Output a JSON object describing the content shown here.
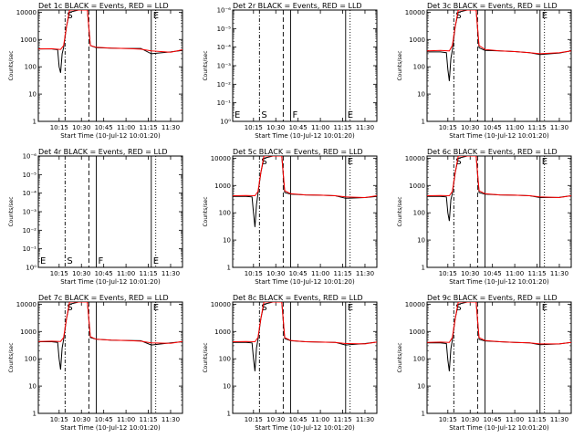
{
  "colors": {
    "events": "#000000",
    "lld": "#ff0000",
    "background": "#ffffff"
  },
  "shared_xlabel": "Start Time (10-Jul-12 10:01:20)",
  "shared_ylabel": "Counts/sec",
  "x_ticklabels": [
    "10:15",
    "10:30",
    "10:45",
    "11:00",
    "11:15",
    "11:30"
  ],
  "chart_data": [
    {
      "type": "line",
      "title": "Det 1c BLACK = Events, RED = LLD",
      "xlabel": "Start Time (10-Jul-12 10:01:20)",
      "ylabel": "Counts/sec",
      "x_ticks": [
        "10:15",
        "10:30",
        "10:45",
        "11:00",
        "11:15",
        "11:30"
      ],
      "yscale": "log",
      "y_ticks": [
        "1",
        "10",
        "100",
        "1000",
        "10000"
      ],
      "ylim": [
        1,
        12000
      ],
      "vlines": {
        "dashdot": "10:19",
        "dashed": "10:35",
        "solid": "10:40",
        "solid2": "11:17",
        "dotted": "11:20"
      },
      "labels": [
        {
          "text": "S",
          "at": "10:19"
        },
        {
          "text": "E",
          "at": "11:17"
        }
      ],
      "series": [
        {
          "name": "Events",
          "x": [
            "10:01",
            "10:10",
            "10:14",
            "10:15",
            "10:16",
            "10:17",
            "10:18",
            "10:20",
            "10:22",
            "10:28",
            "10:34",
            "10:36",
            "10:40",
            "10:50",
            "11:00",
            "11:10",
            "11:17",
            "11:30",
            "11:38"
          ],
          "values": [
            450,
            450,
            420,
            100,
            60,
            300,
            500,
            3000,
            10000,
            12000,
            12000,
            600,
            500,
            480,
            470,
            470,
            300,
            350,
            400
          ]
        },
        {
          "name": "LLD",
          "x": [
            "10:01",
            "10:10",
            "10:16",
            "10:18",
            "10:20",
            "10:22",
            "10:28",
            "10:34",
            "10:36",
            "10:40",
            "10:50",
            "11:00",
            "11:10",
            "11:17",
            "11:30",
            "11:38"
          ],
          "values": [
            450,
            460,
            430,
            600,
            3000,
            12000,
            12000,
            12000,
            600,
            520,
            480,
            470,
            440,
            380,
            340,
            420
          ]
        }
      ]
    },
    {
      "type": "line",
      "title": "Det 2r BLACK = Events, RED = LLD",
      "xlabel": "Start Time (10-Jul-12 10:01:20)",
      "ylabel": "Counts/sec",
      "x_ticks": [
        "10:15",
        "10:30",
        "10:45",
        "11:00",
        "11:15",
        "11:30"
      ],
      "yscale": "log",
      "y_ticks": [
        "10⁰",
        "10⁻¹",
        "10⁻²",
        "10⁻³",
        "10⁻⁴",
        "10⁻⁵",
        "10⁻⁶"
      ],
      "vlines": {
        "dashdot": "10:19",
        "dashed": "10:35",
        "solid": "10:40",
        "solid2": "11:17",
        "dotted": "11:20"
      },
      "labels": [
        {
          "text": "E",
          "at": "10:01"
        },
        {
          "text": "S",
          "at": "10:19"
        },
        {
          "text": "F",
          "at": "10:40"
        },
        {
          "text": "E",
          "at": "11:17"
        }
      ],
      "series": []
    },
    {
      "type": "line",
      "title": "Det 3c BLACK = Events, RED = LLD",
      "xlabel": "Start Time (10-Jul-12 10:01:20)",
      "ylabel": "Counts/sec",
      "x_ticks": [
        "10:15",
        "10:30",
        "10:45",
        "11:00",
        "11:15",
        "11:30"
      ],
      "yscale": "log",
      "y_ticks": [
        "1",
        "10",
        "100",
        "1000",
        "10000"
      ],
      "ylim": [
        1,
        12000
      ],
      "vlines": {
        "dashdot": "10:19",
        "dashed": "10:35",
        "solid": "10:40",
        "solid2": "11:17",
        "dotted": "11:20"
      },
      "labels": [
        {
          "text": "S",
          "at": "10:19"
        },
        {
          "text": "E",
          "at": "11:17"
        }
      ],
      "series": [
        {
          "name": "Events",
          "x": [
            "10:01",
            "10:10",
            "10:14",
            "10:15",
            "10:16",
            "10:17",
            "10:18",
            "10:20",
            "10:22",
            "10:28",
            "10:34",
            "10:36",
            "10:40",
            "10:50",
            "11:00",
            "11:10",
            "11:17",
            "11:30",
            "11:38"
          ],
          "values": [
            350,
            350,
            330,
            80,
            30,
            200,
            400,
            3000,
            10000,
            12000,
            12000,
            500,
            400,
            380,
            360,
            330,
            280,
            320,
            380
          ]
        },
        {
          "name": "LLD",
          "x": [
            "10:01",
            "10:10",
            "10:16",
            "10:18",
            "10:20",
            "10:22",
            "10:28",
            "10:34",
            "10:36",
            "10:40",
            "10:50",
            "11:00",
            "11:10",
            "11:17",
            "11:30",
            "11:38"
          ],
          "values": [
            380,
            400,
            380,
            600,
            3000,
            12000,
            12000,
            12000,
            600,
            430,
            380,
            360,
            330,
            300,
            330,
            380
          ]
        }
      ]
    },
    {
      "type": "line",
      "title": "Det 4r BLACK = Events, RED = LLD",
      "xlabel": "Start Time (10-Jul-12 10:01:20)",
      "ylabel": "Counts/sec",
      "x_ticks": [
        "10:15",
        "10:30",
        "10:45",
        "11:00",
        "11:15",
        "11:30"
      ],
      "yscale": "log",
      "y_ticks": [
        "10⁰",
        "10⁻¹",
        "10⁻²",
        "10⁻³",
        "10⁻⁴",
        "10⁻⁵",
        "10⁻⁶"
      ],
      "vlines": {
        "dashdot": "10:19",
        "dashed": "10:35",
        "solid": "10:40",
        "solid2": "11:17",
        "dotted": "11:20"
      },
      "labels": [
        {
          "text": "E",
          "at": "10:01"
        },
        {
          "text": "S",
          "at": "10:19"
        },
        {
          "text": "F",
          "at": "10:40"
        },
        {
          "text": "E",
          "at": "11:17"
        }
      ],
      "series": []
    },
    {
      "type": "line",
      "title": "Det 5c BLACK = Events, RED = LLD",
      "xlabel": "Start Time (10-Jul-12 10:01:20)",
      "ylabel": "Counts/sec",
      "x_ticks": [
        "10:15",
        "10:30",
        "10:45",
        "11:00",
        "11:15",
        "11:30"
      ],
      "yscale": "log",
      "y_ticks": [
        "1",
        "10",
        "100",
        "1000",
        "10000"
      ],
      "ylim": [
        1,
        12000
      ],
      "vlines": {
        "dashdot": "10:19",
        "dashed": "10:35",
        "solid": "10:40",
        "solid2": "11:17",
        "dotted": "11:20"
      },
      "labels": [
        {
          "text": "S",
          "at": "10:19"
        },
        {
          "text": "E",
          "at": "11:17"
        }
      ],
      "series": [
        {
          "name": "Events",
          "x": [
            "10:01",
            "10:10",
            "10:14",
            "10:15",
            "10:16",
            "10:17",
            "10:18",
            "10:20",
            "10:22",
            "10:28",
            "10:34",
            "10:36",
            "10:40",
            "10:50",
            "11:00",
            "11:10",
            "11:17",
            "11:30",
            "11:38"
          ],
          "values": [
            400,
            400,
            380,
            100,
            30,
            200,
            500,
            3000,
            10000,
            12000,
            12000,
            550,
            480,
            450,
            440,
            420,
            340,
            360,
            400
          ]
        },
        {
          "name": "LLD",
          "x": [
            "10:01",
            "10:10",
            "10:16",
            "10:18",
            "10:20",
            "10:22",
            "10:28",
            "10:34",
            "10:36",
            "10:40",
            "10:50",
            "11:00",
            "11:10",
            "11:17",
            "11:30",
            "11:38"
          ],
          "values": [
            420,
            430,
            420,
            600,
            3000,
            12000,
            12000,
            12000,
            650,
            500,
            450,
            440,
            420,
            380,
            360,
            420
          ]
        }
      ]
    },
    {
      "type": "line",
      "title": "Det 6c BLACK = Events, RED = LLD",
      "xlabel": "Start Time (10-Jul-12 10:01:20)",
      "ylabel": "Counts/sec",
      "x_ticks": [
        "10:15",
        "10:30",
        "10:45",
        "11:00",
        "11:15",
        "11:30"
      ],
      "yscale": "log",
      "y_ticks": [
        "1",
        "10",
        "100",
        "1000",
        "10000"
      ],
      "ylim": [
        1,
        12000
      ],
      "vlines": {
        "dashdot": "10:19",
        "dashed": "10:35",
        "solid": "10:40",
        "solid2": "11:17",
        "dotted": "11:20"
      },
      "labels": [
        {
          "text": "S",
          "at": "10:19"
        },
        {
          "text": "E",
          "at": "11:17"
        }
      ],
      "series": [
        {
          "name": "Events",
          "x": [
            "10:01",
            "10:10",
            "10:14",
            "10:15",
            "10:16",
            "10:17",
            "10:18",
            "10:20",
            "10:22",
            "10:28",
            "10:34",
            "10:36",
            "10:40",
            "10:50",
            "11:00",
            "11:10",
            "11:17",
            "11:30",
            "11:38"
          ],
          "values": [
            400,
            400,
            380,
            100,
            50,
            300,
            500,
            3000,
            10000,
            12000,
            12000,
            550,
            480,
            450,
            440,
            420,
            360,
            370,
            420
          ]
        },
        {
          "name": "LLD",
          "x": [
            "10:01",
            "10:10",
            "10:16",
            "10:18",
            "10:20",
            "10:22",
            "10:28",
            "10:34",
            "10:36",
            "10:40",
            "10:50",
            "11:00",
            "11:10",
            "11:17",
            "11:30",
            "11:38"
          ],
          "values": [
            420,
            430,
            420,
            600,
            3000,
            12000,
            12000,
            12000,
            650,
            500,
            450,
            440,
            420,
            380,
            360,
            420
          ]
        }
      ]
    },
    {
      "type": "line",
      "title": "Det 7c BLACK = Events, RED = LLD",
      "xlabel": "Start Time (10-Jul-12 10:01:20)",
      "ylabel": "Counts/sec",
      "x_ticks": [
        "10:15",
        "10:30",
        "10:45",
        "11:00",
        "11:15",
        "11:30"
      ],
      "yscale": "log",
      "y_ticks": [
        "1",
        "10",
        "100",
        "1000",
        "10000"
      ],
      "ylim": [
        1,
        12000
      ],
      "vlines": {
        "dashdot": "10:19",
        "dashed": "10:35",
        "solid": "10:40",
        "solid2": "11:17",
        "dotted": "11:20"
      },
      "labels": [
        {
          "text": "S",
          "at": "10:19"
        },
        {
          "text": "E",
          "at": "11:17"
        }
      ],
      "series": [
        {
          "name": "Events",
          "x": [
            "10:01",
            "10:10",
            "10:14",
            "10:15",
            "10:16",
            "10:17",
            "10:18",
            "10:20",
            "10:22",
            "10:28",
            "10:34",
            "10:36",
            "10:40",
            "10:50",
            "11:00",
            "11:10",
            "11:17",
            "11:30",
            "11:38"
          ],
          "values": [
            420,
            420,
            400,
            100,
            40,
            250,
            500,
            3000,
            10000,
            12000,
            12000,
            600,
            520,
            480,
            470,
            460,
            320,
            380,
            420
          ]
        },
        {
          "name": "LLD",
          "x": [
            "10:01",
            "10:10",
            "10:16",
            "10:18",
            "10:20",
            "10:22",
            "10:28",
            "10:34",
            "10:36",
            "10:40",
            "10:50",
            "11:00",
            "11:10",
            "11:17",
            "11:30",
            "11:38"
          ],
          "values": [
            430,
            440,
            430,
            600,
            3000,
            12000,
            12000,
            12000,
            650,
            520,
            480,
            470,
            440,
            380,
            370,
            430
          ]
        }
      ]
    },
    {
      "type": "line",
      "title": "Det 8c BLACK = Events, RED = LLD",
      "xlabel": "Start Time (10-Jul-12 10:01:20)",
      "ylabel": "Counts/sec",
      "x_ticks": [
        "10:15",
        "10:30",
        "10:45",
        "11:00",
        "11:15",
        "11:30"
      ],
      "yscale": "log",
      "y_ticks": [
        "1",
        "10",
        "100",
        "1000",
        "10000"
      ],
      "ylim": [
        1,
        12000
      ],
      "vlines": {
        "dashdot": "10:19",
        "dashed": "10:35",
        "solid": "10:40",
        "solid2": "11:17",
        "dotted": "11:20"
      },
      "labels": [
        {
          "text": "S",
          "at": "10:19"
        },
        {
          "text": "E",
          "at": "11:17"
        }
      ],
      "series": [
        {
          "name": "Events",
          "x": [
            "10:01",
            "10:10",
            "10:14",
            "10:15",
            "10:16",
            "10:17",
            "10:18",
            "10:20",
            "10:22",
            "10:28",
            "10:34",
            "10:36",
            "10:40",
            "10:50",
            "11:00",
            "11:10",
            "11:17",
            "11:30",
            "11:38"
          ],
          "values": [
            400,
            400,
            380,
            100,
            35,
            250,
            500,
            3000,
            10000,
            12000,
            12000,
            550,
            460,
            420,
            410,
            400,
            320,
            360,
            410
          ]
        },
        {
          "name": "LLD",
          "x": [
            "10:01",
            "10:10",
            "10:16",
            "10:18",
            "10:20",
            "10:22",
            "10:28",
            "10:34",
            "10:36",
            "10:40",
            "10:50",
            "11:00",
            "11:10",
            "11:17",
            "11:30",
            "11:38"
          ],
          "values": [
            420,
            430,
            420,
            600,
            3000,
            12000,
            12000,
            12000,
            600,
            470,
            420,
            410,
            400,
            360,
            350,
            410
          ]
        }
      ]
    },
    {
      "type": "line",
      "title": "Det 9c BLACK = Events, RED = LLD",
      "xlabel": "Start Time (10-Jul-12 10:01:20)",
      "ylabel": "Counts/sec",
      "x_ticks": [
        "10:15",
        "10:30",
        "10:45",
        "11:00",
        "11:15",
        "11:30"
      ],
      "yscale": "log",
      "y_ticks": [
        "1",
        "10",
        "100",
        "1000",
        "10000"
      ],
      "ylim": [
        1,
        12000
      ],
      "vlines": {
        "dashdot": "10:19",
        "dashed": "10:35",
        "solid": "10:40",
        "solid2": "11:17",
        "dotted": "11:20"
      },
      "labels": [
        {
          "text": "S",
          "at": "10:19"
        },
        {
          "text": "E",
          "at": "11:17"
        }
      ],
      "series": [
        {
          "name": "Events",
          "x": [
            "10:01",
            "10:10",
            "10:14",
            "10:15",
            "10:16",
            "10:17",
            "10:18",
            "10:20",
            "10:22",
            "10:28",
            "10:34",
            "10:36",
            "10:40",
            "10:50",
            "11:00",
            "11:10",
            "11:17",
            "11:30",
            "11:38"
          ],
          "values": [
            380,
            380,
            360,
            90,
            35,
            230,
            480,
            3000,
            10000,
            12000,
            12000,
            520,
            450,
            420,
            400,
            380,
            330,
            350,
            400
          ]
        },
        {
          "name": "LLD",
          "x": [
            "10:01",
            "10:10",
            "10:16",
            "10:18",
            "10:20",
            "10:22",
            "10:28",
            "10:34",
            "10:36",
            "10:40",
            "10:50",
            "11:00",
            "11:10",
            "11:17",
            "11:30",
            "11:38"
          ],
          "values": [
            400,
            410,
            400,
            600,
            3000,
            12000,
            12000,
            12000,
            600,
            470,
            420,
            400,
            380,
            350,
            350,
            400
          ]
        }
      ]
    }
  ]
}
